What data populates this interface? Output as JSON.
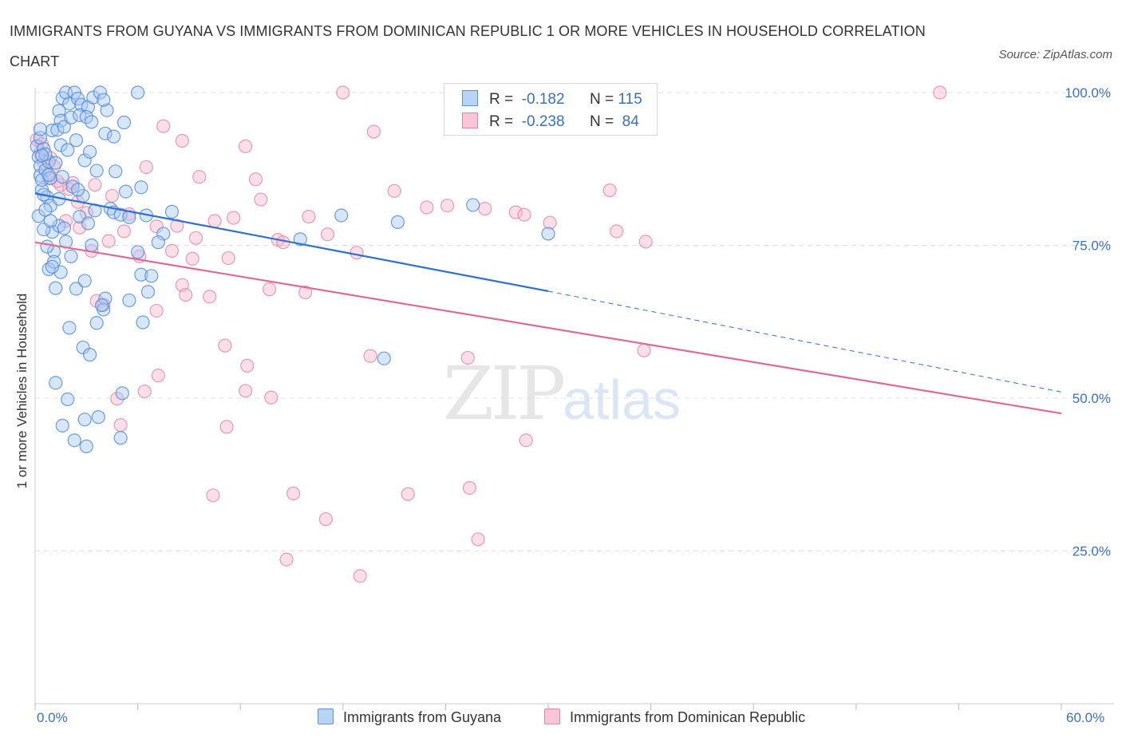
{
  "title": "IMMIGRANTS FROM GUYANA VS IMMIGRANTS FROM DOMINICAN REPUBLIC 1 OR MORE VEHICLES IN HOUSEHOLD CORRELATION CHART",
  "source": "Source: ZipAtlas.com",
  "watermark": {
    "zip": "ZIP",
    "atlas": "atlas"
  },
  "legend": {
    "rows": [
      {
        "r_label": "R =",
        "r_value": "-0.182",
        "n_label": "N =",
        "n_value": "115"
      },
      {
        "r_label": "R =",
        "r_value": "-0.238",
        "n_label": "N =",
        "n_value": "84"
      }
    ]
  },
  "bottom_legend": [
    "Immigrants from Guyana",
    "Immigrants from Dominican Republic"
  ],
  "colors": {
    "blue_fill": "#a9c8f2",
    "blue_stroke": "#4a86d8",
    "blue_line": "#2f6fd0",
    "pink_fill": "#f5b9cd",
    "pink_stroke": "#e583a3",
    "pink_line": "#e06a94",
    "tick_text": "#3a6fc2",
    "grid": "#e0e0e0"
  },
  "chart_data": {
    "type": "scatter",
    "title": "IMMIGRANTS FROM GUYANA VS IMMIGRANTS FROM DOMINICAN REPUBLIC 1 OR MORE VEHICLES IN HOUSEHOLD CORRELATION CHART",
    "xlabel": "",
    "ylabel": "1 or more Vehicles in Household",
    "xlim": [
      0,
      60
    ],
    "ylim": [
      0,
      100
    ],
    "x_tick_labels": [
      {
        "x": 0,
        "label": "0.0%"
      },
      {
        "x": 60,
        "label": "60.0%"
      }
    ],
    "y_tick_labels": [
      {
        "y": 100,
        "label": "100.0%"
      },
      {
        "y": 75,
        "label": "75.0%"
      },
      {
        "y": 50,
        "label": "50.0%"
      },
      {
        "y": 25,
        "label": "25.0%"
      }
    ],
    "series": [
      {
        "name": "Immigrants from Guyana",
        "R": -0.182,
        "N": 115,
        "trend": {
          "x_start": 0,
          "y_start": 83.5,
          "x_solid_end": 30,
          "y_solid_end": 67.5,
          "x_end": 60,
          "y_end": 51.0
        },
        "points": [
          [
            0.1,
            91.2
          ],
          [
            0.2,
            89.5
          ],
          [
            0.3,
            88.0
          ],
          [
            0.3,
            86.4
          ],
          [
            0.4,
            84.1
          ],
          [
            0.5,
            90.8
          ],
          [
            0.6,
            87.3
          ],
          [
            0.4,
            85.7
          ],
          [
            0.7,
            82.9
          ],
          [
            0.8,
            88.7
          ],
          [
            0.5,
            83.3
          ],
          [
            0.9,
            81.5
          ],
          [
            0.3,
            92.6
          ],
          [
            0.6,
            89.9
          ],
          [
            0.9,
            86.0
          ],
          [
            0.2,
            79.8
          ],
          [
            1.0,
            77.2
          ],
          [
            1.1,
            74.0
          ],
          [
            0.8,
            71.1
          ],
          [
            1.2,
            68.0
          ],
          [
            1.0,
            93.8
          ],
          [
            1.4,
            97.0
          ],
          [
            1.5,
            95.4
          ],
          [
            1.6,
            99.1
          ],
          [
            1.8,
            100.0
          ],
          [
            2.0,
            98.2
          ],
          [
            2.3,
            100.0
          ],
          [
            2.5,
            99.0
          ],
          [
            2.7,
            98.0
          ],
          [
            3.1,
            97.6
          ],
          [
            3.4,
            99.2
          ],
          [
            3.8,
            100.0
          ],
          [
            4.2,
            97.1
          ],
          [
            4.0,
            98.8
          ],
          [
            1.3,
            93.9
          ],
          [
            1.7,
            94.4
          ],
          [
            2.1,
            95.9
          ],
          [
            2.6,
            96.3
          ],
          [
            3.0,
            96.0
          ],
          [
            3.3,
            95.2
          ],
          [
            1.5,
            91.4
          ],
          [
            1.9,
            90.6
          ],
          [
            2.4,
            92.2
          ],
          [
            2.9,
            88.9
          ],
          [
            3.2,
            90.3
          ],
          [
            3.6,
            87.2
          ],
          [
            4.1,
            93.3
          ],
          [
            4.6,
            92.8
          ],
          [
            5.2,
            95.1
          ],
          [
            6.0,
            100.0
          ],
          [
            1.2,
            88.5
          ],
          [
            1.6,
            86.2
          ],
          [
            2.2,
            84.6
          ],
          [
            2.8,
            83.1
          ],
          [
            3.5,
            80.7
          ],
          [
            1.4,
            78.2
          ],
          [
            1.8,
            75.6
          ],
          [
            2.6,
            79.7
          ],
          [
            3.1,
            78.6
          ],
          [
            4.4,
            81.0
          ],
          [
            1.1,
            72.3
          ],
          [
            1.5,
            70.6
          ],
          [
            2.4,
            67.9
          ],
          [
            2.9,
            69.2
          ],
          [
            3.3,
            75.0
          ],
          [
            4.6,
            80.4
          ],
          [
            5.3,
            83.8
          ],
          [
            6.2,
            84.5
          ],
          [
            4.1,
            66.3
          ],
          [
            3.6,
            62.3
          ],
          [
            0.5,
            77.6
          ],
          [
            0.7,
            74.8
          ],
          [
            1.0,
            71.5
          ],
          [
            5.0,
            80.0
          ],
          [
            5.5,
            79.6
          ],
          [
            6.5,
            79.9
          ],
          [
            7.5,
            76.9
          ],
          [
            8.0,
            80.5
          ],
          [
            6.2,
            70.2
          ],
          [
            6.6,
            67.4
          ],
          [
            2.0,
            61.5
          ],
          [
            2.8,
            58.3
          ],
          [
            3.2,
            57.1
          ],
          [
            4.0,
            64.5
          ],
          [
            5.5,
            66.0
          ],
          [
            6.3,
            62.4
          ],
          [
            1.2,
            52.5
          ],
          [
            1.9,
            49.8
          ],
          [
            2.9,
            46.5
          ],
          [
            3.7,
            46.9
          ],
          [
            1.6,
            45.5
          ],
          [
            2.3,
            43.1
          ],
          [
            3.0,
            42.1
          ],
          [
            5.0,
            43.5
          ],
          [
            5.1,
            50.8
          ],
          [
            6.0,
            73.9
          ],
          [
            7.2,
            75.5
          ],
          [
            6.8,
            70.0
          ],
          [
            15.5,
            76.0
          ],
          [
            17.9,
            79.9
          ],
          [
            21.2,
            78.8
          ],
          [
            25.6,
            81.6
          ],
          [
            30.0,
            76.9
          ],
          [
            20.4,
            56.5
          ],
          [
            4.7,
            87.1
          ],
          [
            0.8,
            86.5
          ],
          [
            2.5,
            84.1
          ],
          [
            1.4,
            82.6
          ],
          [
            0.6,
            80.8
          ],
          [
            0.9,
            79.0
          ],
          [
            1.7,
            77.8
          ],
          [
            2.1,
            73.2
          ],
          [
            0.4,
            89.7
          ],
          [
            0.3,
            94.0
          ],
          [
            3.9,
            65.2
          ]
        ]
      },
      {
        "name": "Immigrants from Dominican Republic",
        "R": -0.238,
        "N": 84,
        "trend": {
          "x_start": 0,
          "y_start": 75.5,
          "x_end": 60,
          "y_end": 47.5
        },
        "points": [
          [
            0.1,
            92.3
          ],
          [
            0.3,
            90.1
          ],
          [
            0.5,
            88.6
          ],
          [
            0.8,
            86.0
          ],
          [
            1.1,
            87.9
          ],
          [
            1.5,
            84.9
          ],
          [
            2.0,
            84.2
          ],
          [
            2.5,
            82.1
          ],
          [
            3.0,
            80.3
          ],
          [
            1.8,
            79.0
          ],
          [
            0.4,
            91.6
          ],
          [
            0.9,
            89.3
          ],
          [
            1.3,
            85.5
          ],
          [
            2.2,
            85.2
          ],
          [
            3.5,
            84.9
          ],
          [
            4.5,
            83.1
          ],
          [
            5.5,
            80.1
          ],
          [
            6.5,
            87.8
          ],
          [
            7.5,
            94.5
          ],
          [
            8.6,
            92.1
          ],
          [
            9.6,
            86.2
          ],
          [
            10.5,
            79.0
          ],
          [
            11.6,
            79.5
          ],
          [
            12.3,
            91.2
          ],
          [
            12.9,
            85.8
          ],
          [
            13.2,
            82.5
          ],
          [
            14.2,
            75.9
          ],
          [
            16.0,
            79.7
          ],
          [
            17.1,
            76.8
          ],
          [
            18.0,
            100.0
          ],
          [
            18.8,
            73.8
          ],
          [
            19.8,
            93.6
          ],
          [
            21.0,
            83.9
          ],
          [
            22.9,
            81.2
          ],
          [
            24.1,
            81.5
          ],
          [
            26.3,
            81.0
          ],
          [
            28.1,
            80.4
          ],
          [
            28.6,
            80.0
          ],
          [
            30.1,
            78.7
          ],
          [
            33.6,
            84.0
          ],
          [
            34.0,
            77.3
          ],
          [
            35.7,
            75.6
          ],
          [
            52.9,
            100.0
          ],
          [
            2.6,
            77.9
          ],
          [
            3.3,
            74.1
          ],
          [
            4.3,
            75.7
          ],
          [
            5.2,
            77.3
          ],
          [
            6.1,
            73.2
          ],
          [
            7.1,
            78.1
          ],
          [
            8.0,
            74.1
          ],
          [
            8.3,
            78.2
          ],
          [
            9.2,
            72.8
          ],
          [
            9.4,
            76.2
          ],
          [
            11.3,
            72.9
          ],
          [
            13.7,
            67.8
          ],
          [
            14.5,
            75.5
          ],
          [
            15.8,
            67.3
          ],
          [
            3.6,
            65.9
          ],
          [
            4.0,
            65.3
          ],
          [
            8.6,
            68.5
          ],
          [
            8.8,
            66.9
          ],
          [
            10.2,
            66.6
          ],
          [
            7.1,
            64.3
          ],
          [
            7.2,
            53.7
          ],
          [
            11.1,
            58.6
          ],
          [
            12.4,
            55.3
          ],
          [
            6.4,
            51.1
          ],
          [
            12.3,
            51.2
          ],
          [
            13.8,
            50.1
          ],
          [
            4.8,
            49.9
          ],
          [
            5.0,
            45.6
          ],
          [
            11.2,
            45.3
          ],
          [
            19.6,
            56.9
          ],
          [
            25.3,
            56.6
          ],
          [
            35.6,
            57.8
          ],
          [
            28.7,
            43.1
          ],
          [
            10.4,
            34.1
          ],
          [
            15.1,
            34.4
          ],
          [
            17.0,
            30.2
          ],
          [
            21.8,
            34.3
          ],
          [
            25.4,
            35.3
          ],
          [
            25.9,
            26.9
          ],
          [
            14.7,
            23.6
          ],
          [
            19.0,
            20.9
          ]
        ]
      }
    ]
  }
}
